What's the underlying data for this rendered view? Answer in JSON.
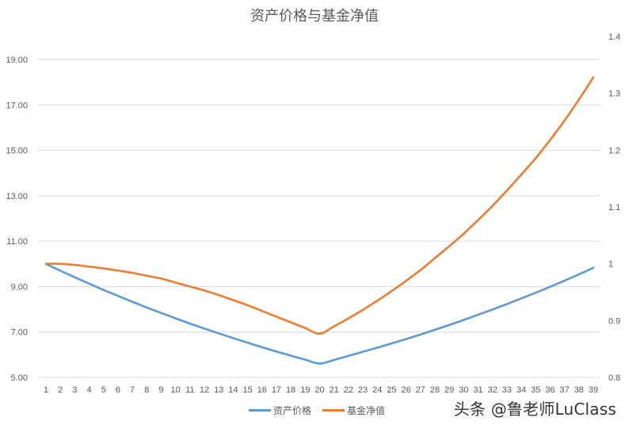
{
  "chart_data": {
    "type": "line",
    "title": "资产价格与基金净值",
    "xlabel": "",
    "ylabel_left": "",
    "ylabel_right": "",
    "categories": [
      1,
      2,
      3,
      4,
      5,
      6,
      7,
      8,
      9,
      10,
      11,
      12,
      13,
      14,
      15,
      16,
      17,
      18,
      19,
      20,
      21,
      22,
      23,
      24,
      25,
      26,
      27,
      28,
      29,
      30,
      31,
      32,
      33,
      34,
      35,
      36,
      37,
      38,
      39
    ],
    "series": [
      {
        "name": "资产价格",
        "axis": "left",
        "color": "#5B9BD5",
        "values": [
          10.0,
          9.7,
          9.41,
          9.13,
          8.85,
          8.59,
          8.33,
          8.08,
          7.84,
          7.6,
          7.37,
          7.15,
          6.94,
          6.73,
          6.53,
          6.33,
          6.14,
          5.96,
          5.78,
          5.61,
          5.77,
          5.95,
          6.13,
          6.31,
          6.5,
          6.69,
          6.89,
          7.1,
          7.31,
          7.53,
          7.76,
          7.99,
          8.23,
          8.48,
          8.73,
          8.99,
          9.26,
          9.54,
          9.83
        ]
      },
      {
        "name": "基金净值",
        "axis": "right",
        "color": "#ED7D31",
        "values": [
          1.0,
          1.0,
          0.998,
          0.995,
          0.992,
          0.988,
          0.984,
          0.979,
          0.974,
          0.967,
          0.96,
          0.953,
          0.945,
          0.936,
          0.927,
          0.917,
          0.907,
          0.897,
          0.887,
          0.877,
          0.89,
          0.904,
          0.919,
          0.935,
          0.952,
          0.97,
          0.989,
          1.01,
          1.031,
          1.053,
          1.077,
          1.102,
          1.129,
          1.157,
          1.186,
          1.218,
          1.252,
          1.289,
          1.328
        ]
      }
    ],
    "left_axis": {
      "ylim": [
        5,
        21
      ],
      "ticks": [
        "5.00",
        "7.00",
        "9.00",
        "11.00",
        "13.00",
        "15.00",
        "17.00",
        "19.00"
      ]
    },
    "right_axis": {
      "ylim": [
        0.8,
        1.4
      ],
      "ticks": [
        "0.8",
        "0.9",
        "1",
        "1.1",
        "1.2",
        "1.3",
        "1.4"
      ]
    },
    "grid": true,
    "legend_position": "bottom"
  },
  "legend": [
    {
      "label": "资产价格",
      "color": "#5B9BD5"
    },
    {
      "label": "基金净值",
      "color": "#ED7D31"
    }
  ],
  "watermark": "头条 @鲁老师LuClass"
}
